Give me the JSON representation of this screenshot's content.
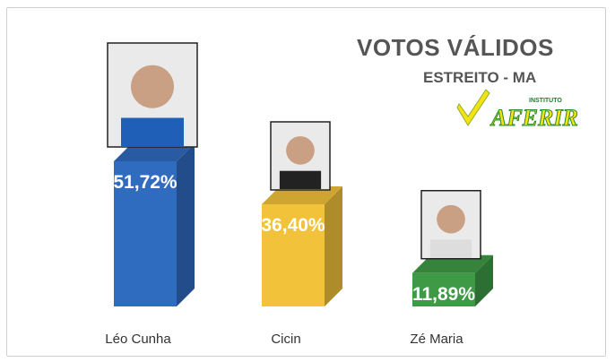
{
  "chart_data": {
    "type": "bar",
    "title": "VOTOS VÁLIDOS",
    "subtitle": "ESTREITO - MA",
    "categories": [
      "Léo Cunha",
      "Cicin",
      "Zé Maria"
    ],
    "values": [
      51.72,
      36.4,
      11.89
    ],
    "value_labels": [
      "51,72%",
      "36,40%",
      "11,89%"
    ],
    "colors": [
      "#2f6bbf",
      "#f2c23a",
      "#3f9a45"
    ],
    "ylim": [
      0,
      60
    ],
    "grid": false
  },
  "brand": {
    "small_text": "INSTITUTO",
    "name": "AFERIR",
    "icon": "check-mark-logo-icon"
  },
  "photos": [
    "candidate-photo-leo-cunha",
    "candidate-photo-cicin",
    "candidate-photo-ze-maria"
  ]
}
